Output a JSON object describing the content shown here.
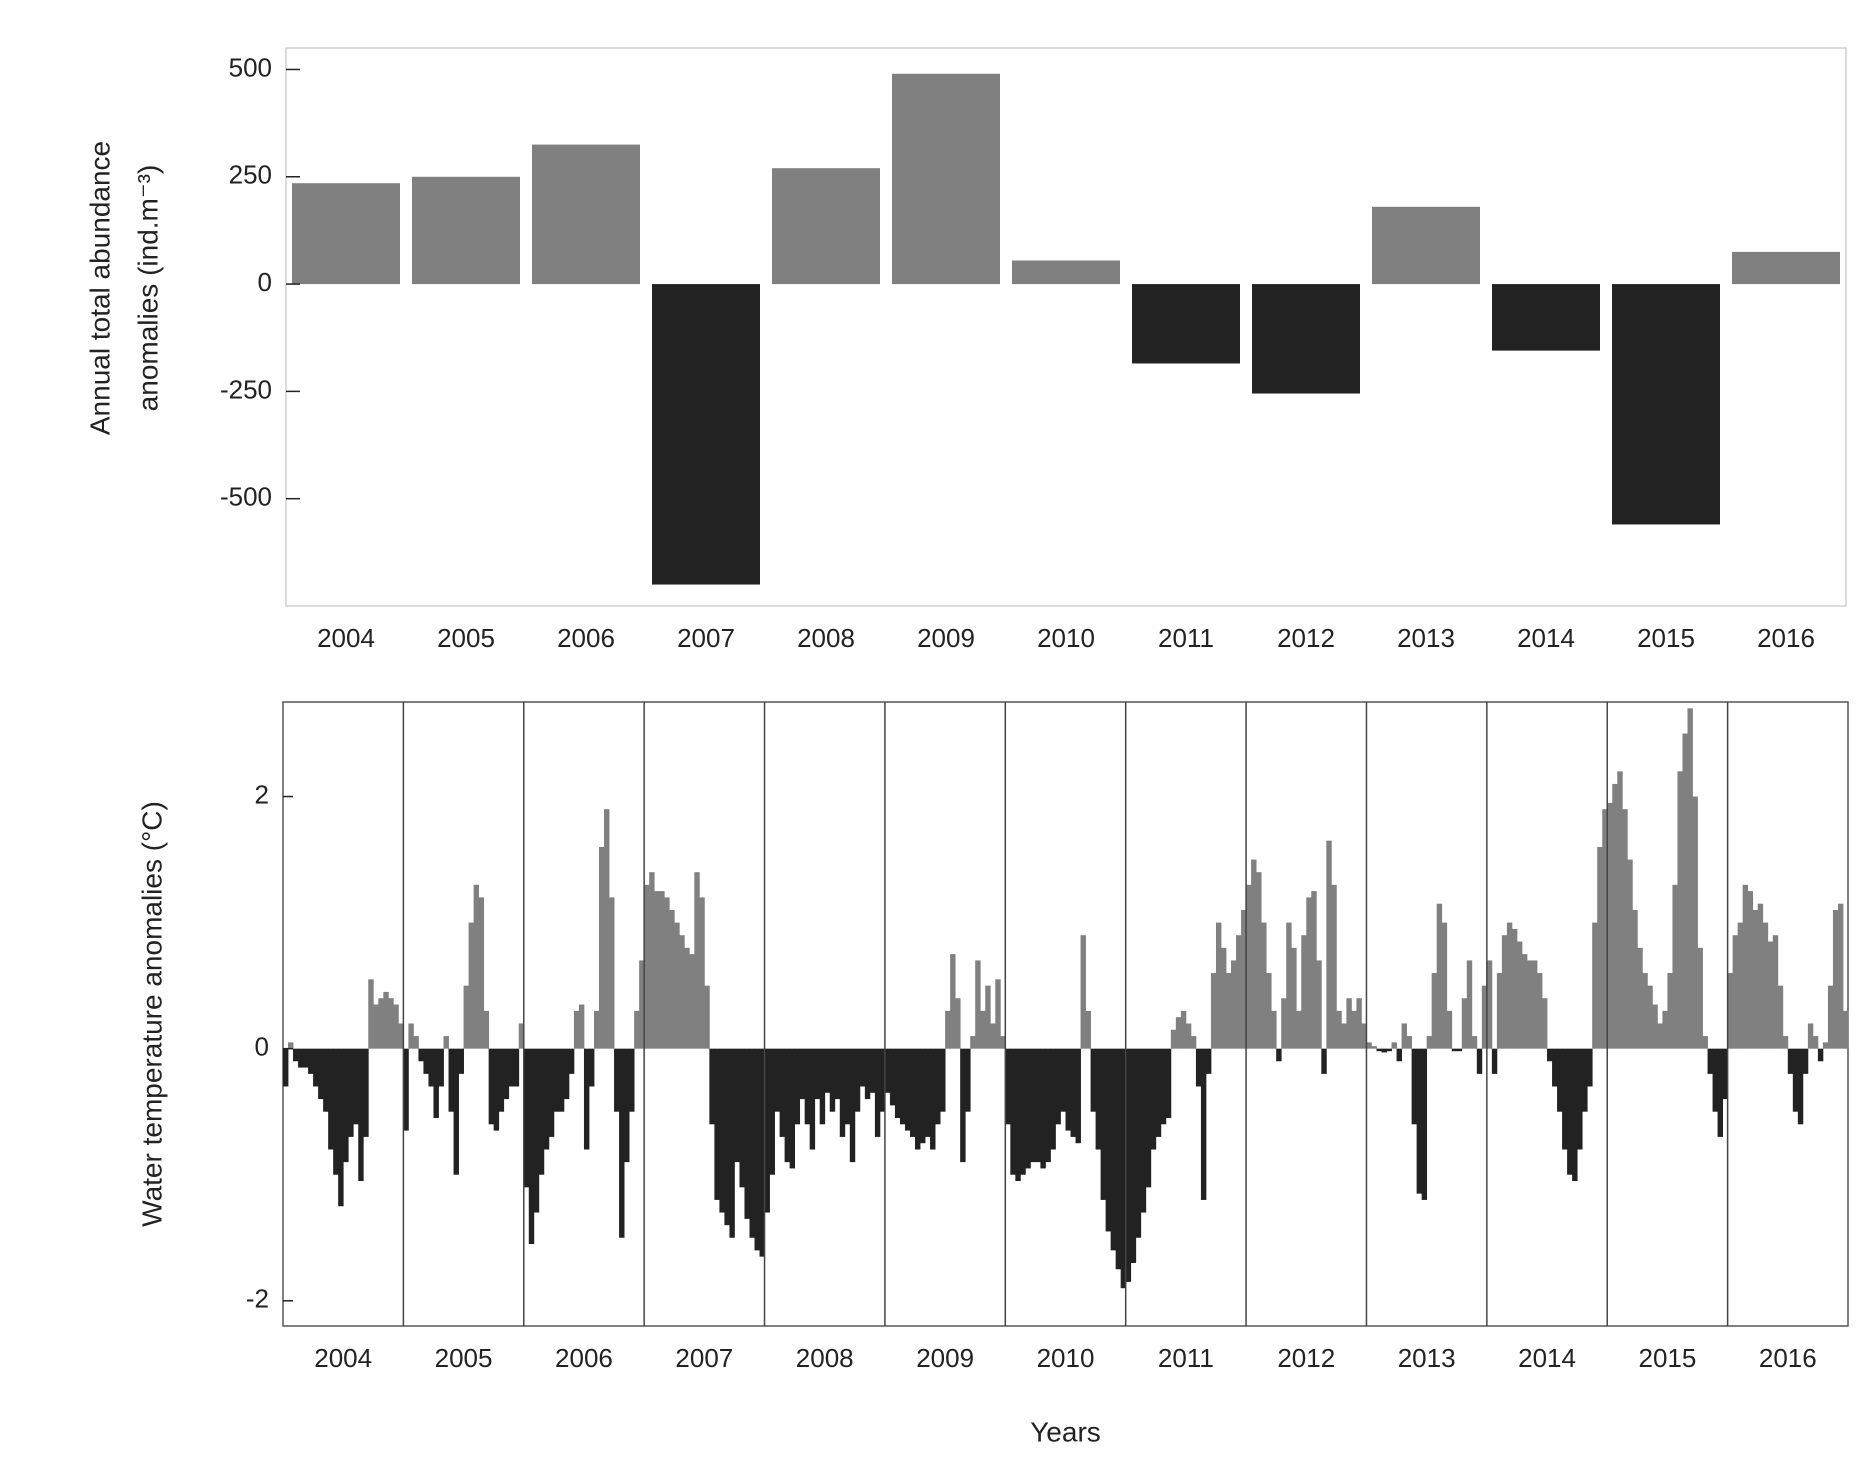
{
  "chart_data": [
    {
      "type": "bar",
      "ylabel": [
        "Annual total abundance",
        "anomalies (ind.m⁻³)"
      ],
      "categories": [
        "2004",
        "2005",
        "2006",
        "2007",
        "2008",
        "2009",
        "2010",
        "2011",
        "2012",
        "2013",
        "2014",
        "2015",
        "2016"
      ],
      "values": [
        235,
        250,
        325,
        -700,
        270,
        490,
        55,
        -185,
        -255,
        180,
        -155,
        -560,
        75
      ],
      "positive_color": "#808080",
      "negative_color": "#222222",
      "ylim": [
        -750,
        550
      ],
      "yticks": [
        -500,
        -250,
        0,
        250,
        500
      ]
    },
    {
      "type": "bar",
      "ylabel": "Water temperature anomalies (°C)",
      "xlabel": "Years",
      "categories": [
        "2004",
        "2005",
        "2006",
        "2007",
        "2008",
        "2009",
        "2010",
        "2011",
        "2012",
        "2013",
        "2014",
        "2015",
        "2016"
      ],
      "values": [
        [
          -0.3,
          0.05,
          -0.1,
          -0.15,
          -0.15,
          -0.2,
          -0.3,
          -0.4,
          -0.5,
          -0.8,
          -1.0,
          -1.25,
          -0.9,
          -0.7,
          -0.6,
          -1.05,
          -0.7,
          0.55,
          0.35,
          0.4,
          0.45,
          0.4,
          0.35,
          0.2
        ],
        [
          -0.65,
          0.2,
          0.1,
          -0.1,
          -0.2,
          -0.3,
          -0.55,
          -0.3,
          0.1,
          -0.5,
          -1.0,
          -0.2,
          0.5,
          1.0,
          1.3,
          1.2,
          0.3,
          -0.6,
          -0.65,
          -0.5,
          -0.4,
          -0.3,
          -0.3,
          0.2
        ],
        [
          -1.1,
          -1.55,
          -1.3,
          -1.0,
          -0.8,
          -0.7,
          -0.5,
          -0.5,
          -0.4,
          -0.2,
          0.3,
          0.35,
          -0.8,
          -0.3,
          0.3,
          1.6,
          1.9,
          1.2,
          -0.5,
          -1.5,
          -0.9,
          -0.5,
          0.3,
          0.7
        ],
        [
          1.3,
          1.4,
          1.25,
          1.25,
          1.2,
          1.1,
          1.0,
          0.9,
          0.8,
          0.75,
          1.4,
          1.2,
          0.5,
          -0.6,
          -1.2,
          -1.3,
          -1.4,
          -1.5,
          -0.9,
          -1.1,
          -1.35,
          -1.5,
          -1.6,
          -1.65
        ],
        [
          -1.3,
          -1.0,
          -0.5,
          -0.7,
          -0.9,
          -0.95,
          -0.6,
          -0.4,
          -0.6,
          -0.8,
          -0.4,
          -0.6,
          -0.35,
          -0.5,
          -0.4,
          -0.7,
          -0.6,
          -0.9,
          -0.5,
          -0.3,
          -0.4,
          -0.35,
          -0.7,
          -0.5
        ],
        [
          -0.35,
          -0.45,
          -0.55,
          -0.6,
          -0.65,
          -0.7,
          -0.8,
          -0.75,
          -0.7,
          -0.8,
          -0.6,
          -0.5,
          0.3,
          0.75,
          0.4,
          -0.9,
          -0.5,
          0.1,
          0.7,
          0.3,
          0.5,
          0.2,
          0.55,
          0.1
        ],
        [
          -0.6,
          -1.0,
          -1.05,
          -1.0,
          -0.95,
          -0.9,
          -0.9,
          -0.95,
          -0.9,
          -0.8,
          -0.6,
          -0.5,
          -0.65,
          -0.7,
          -0.75,
          0.9,
          0.3,
          -0.5,
          -0.8,
          -1.2,
          -1.45,
          -1.6,
          -1.75,
          -1.9
        ],
        [
          -1.85,
          -1.7,
          -1.5,
          -1.3,
          -1.1,
          -0.8,
          -0.7,
          -0.6,
          -0.55,
          0.15,
          0.25,
          0.3,
          0.2,
          0.1,
          -0.3,
          -1.2,
          -0.2,
          0.6,
          1.0,
          0.8,
          0.6,
          0.7,
          0.9,
          1.1
        ],
        [
          1.3,
          1.5,
          1.4,
          1.0,
          0.6,
          0.3,
          -0.1,
          0.4,
          1.0,
          0.8,
          0.3,
          0.9,
          1.2,
          1.25,
          0.7,
          -0.2,
          1.65,
          1.3,
          0.3,
          0.2,
          0.4,
          0.3,
          0.4,
          0.2
        ],
        [
          0.05,
          0.02,
          -0.02,
          -0.03,
          -0.02,
          0.05,
          -0.1,
          0.2,
          0.1,
          -0.6,
          -1.15,
          -1.2,
          0.1,
          0.6,
          1.15,
          1.0,
          0.3,
          -0.02,
          -0.02,
          0.4,
          0.7,
          0.1,
          -0.2,
          0.5
        ],
        [
          0.7,
          -0.2,
          0.6,
          0.9,
          1.0,
          0.95,
          0.85,
          0.75,
          0.7,
          0.7,
          0.6,
          0.4,
          -0.1,
          -0.3,
          -0.5,
          -0.8,
          -1.0,
          -1.05,
          -0.8,
          -0.5,
          -0.3,
          1.0,
          1.6,
          1.9
        ],
        [
          1.95,
          2.1,
          2.2,
          1.9,
          1.5,
          1.1,
          0.8,
          0.6,
          0.5,
          0.35,
          0.2,
          0.3,
          0.6,
          1.3,
          2.2,
          2.5,
          2.7,
          2.0,
          0.8,
          0.1,
          -0.2,
          -0.5,
          -0.7,
          -0.4
        ],
        [
          0.6,
          0.9,
          1.0,
          1.3,
          1.25,
          1.1,
          1.15,
          1.0,
          0.85,
          0.9,
          0.5,
          0.1,
          -0.2,
          -0.5,
          -0.6,
          -0.2,
          0.2,
          0.1,
          -0.1,
          0.05,
          0.5,
          1.1,
          1.15,
          0.3
        ]
      ],
      "positive_color": "#808080",
      "negative_color": "#222222",
      "year_dividers": true,
      "ylim": [
        -2.2,
        2.75
      ],
      "yticks": [
        -2,
        0,
        2
      ]
    }
  ]
}
